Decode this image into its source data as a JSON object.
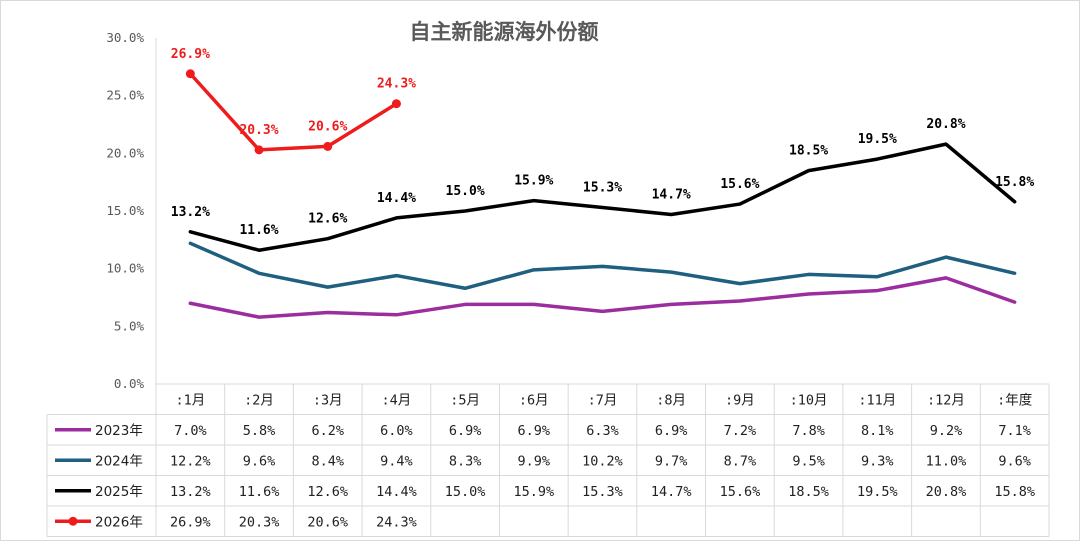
{
  "chart_data": {
    "type": "line",
    "title": "自主新能源海外份额",
    "categories": [
      ":1月",
      ":2月",
      ":3月",
      ":4月",
      ":5月",
      ":6月",
      ":7月",
      ":8月",
      ":9月",
      ":10月",
      ":11月",
      ":12月",
      ":年度"
    ],
    "y_ticks": [
      "0.0%",
      "5.0%",
      "10.0%",
      "15.0%",
      "20.0%",
      "25.0%",
      "30.0%"
    ],
    "ylim": [
      0,
      30
    ],
    "grid": false,
    "legend": "bottom-table",
    "series": [
      {
        "name": "2023年",
        "color": "#9b2d9e",
        "marker": "none",
        "data_labels": false,
        "values": [
          7.0,
          5.8,
          6.2,
          6.0,
          6.9,
          6.9,
          6.3,
          6.9,
          7.2,
          7.8,
          8.1,
          9.2,
          7.1
        ],
        "table": [
          "7.0%",
          "5.8%",
          "6.2%",
          "6.0%",
          "6.9%",
          "6.9%",
          "6.3%",
          "6.9%",
          "7.2%",
          "7.8%",
          "8.1%",
          "9.2%",
          "7.1%"
        ]
      },
      {
        "name": "2024年",
        "color": "#1f5f7f",
        "marker": "none",
        "data_labels": false,
        "values": [
          12.2,
          9.6,
          8.4,
          9.4,
          8.3,
          9.9,
          10.2,
          9.7,
          8.7,
          9.5,
          9.3,
          11.0,
          9.6
        ],
        "table": [
          "12.2%",
          "9.6%",
          "8.4%",
          "9.4%",
          "8.3%",
          "9.9%",
          "10.2%",
          "9.7%",
          "8.7%",
          "9.5%",
          "9.3%",
          "11.0%",
          "9.6%"
        ]
      },
      {
        "name": "2025年",
        "color": "#000000",
        "marker": "none",
        "data_labels": true,
        "label_color": "#000000",
        "values": [
          13.2,
          11.6,
          12.6,
          14.4,
          15.0,
          15.9,
          15.3,
          14.7,
          15.6,
          18.5,
          19.5,
          20.8,
          15.8
        ],
        "table": [
          "13.2%",
          "11.6%",
          "12.6%",
          "14.4%",
          "15.0%",
          "15.9%",
          "15.3%",
          "14.7%",
          "15.6%",
          "18.5%",
          "19.5%",
          "20.8%",
          "15.8%"
        ]
      },
      {
        "name": "2026年",
        "color": "#ee1c1c",
        "marker": "circle",
        "data_labels": true,
        "label_color": "#ee1c1c",
        "values": [
          26.9,
          20.3,
          20.6,
          24.3,
          null,
          null,
          null,
          null,
          null,
          null,
          null,
          null,
          null
        ],
        "table": [
          "26.9%",
          "20.3%",
          "20.6%",
          "24.3%",
          "",
          "",
          "",
          "",
          "",
          "",
          "",
          "",
          ""
        ]
      }
    ]
  }
}
